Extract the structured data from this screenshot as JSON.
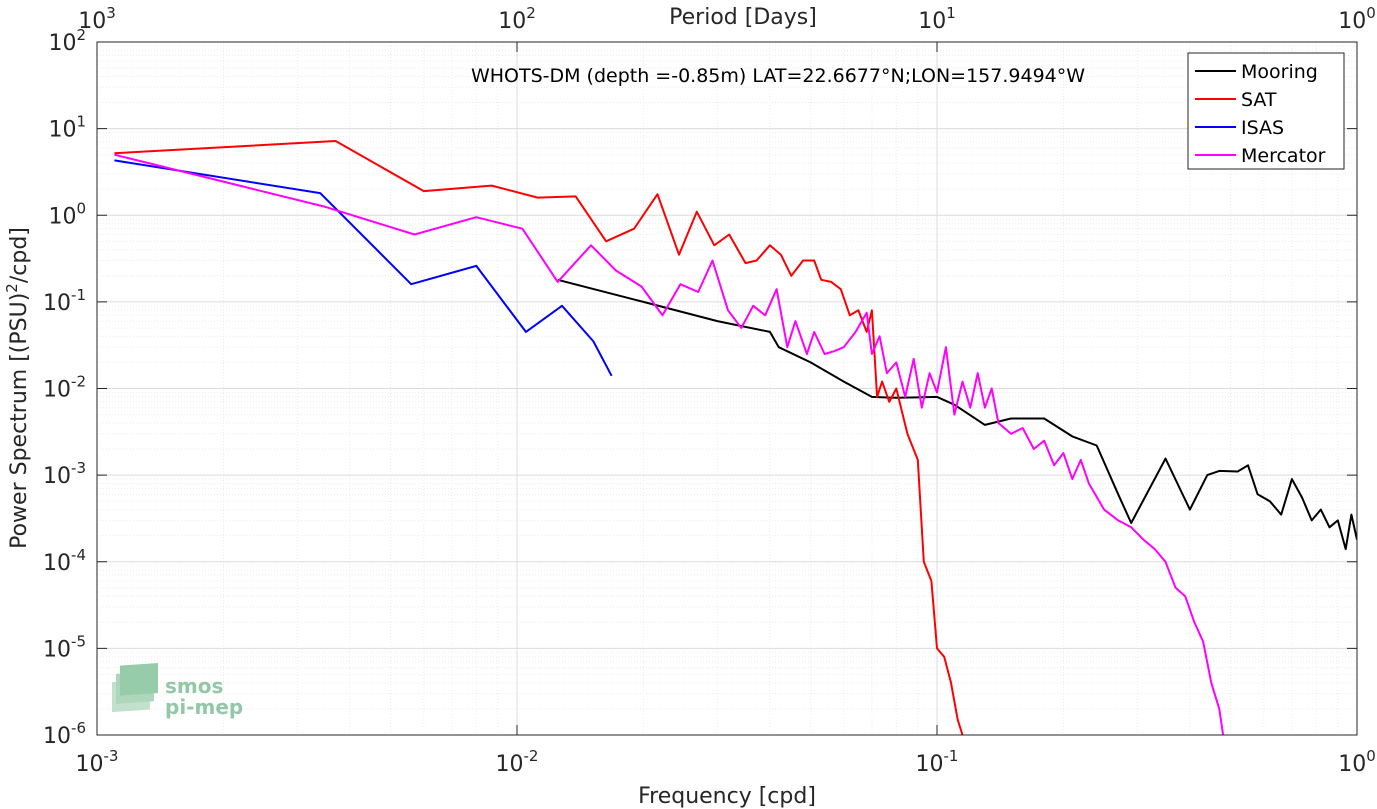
{
  "chart_data": {
    "type": "line",
    "title": "WHOTS-DM (depth =-0.85m) LAT=22.6677°N;LON=157.9494°W",
    "xlabel": "Frequency [cpd]",
    "ylabel_main": "Power Spectrum [(PSU)",
    "ylabel_sup": "2",
    "ylabel_tail": "/cpd]",
    "top_xlabel": "Period [Days]",
    "xscale": "log",
    "yscale": "log",
    "xlim": [
      0.001,
      1
    ],
    "ylim": [
      1e-06,
      100
    ],
    "grid": true,
    "legend_position": "top-right",
    "x_ticks": [
      {
        "value": 0.001,
        "base": "10",
        "exp": "-3"
      },
      {
        "value": 0.01,
        "base": "10",
        "exp": "-2"
      },
      {
        "value": 0.1,
        "base": "10",
        "exp": "-1"
      },
      {
        "value": 1,
        "base": "10",
        "exp": "0"
      }
    ],
    "y_ticks": [
      {
        "value": 1e-06,
        "base": "10",
        "exp": "-6"
      },
      {
        "value": 1e-05,
        "base": "10",
        "exp": "-5"
      },
      {
        "value": 0.0001,
        "base": "10",
        "exp": "-4"
      },
      {
        "value": 0.001,
        "base": "10",
        "exp": "-3"
      },
      {
        "value": 0.01,
        "base": "10",
        "exp": "-2"
      },
      {
        "value": 0.1,
        "base": "10",
        "exp": "-1"
      },
      {
        "value": 1,
        "base": "10",
        "exp": "0"
      },
      {
        "value": 10,
        "base": "10",
        "exp": "1"
      },
      {
        "value": 100,
        "base": "10",
        "exp": "2"
      }
    ],
    "top_ticks": [
      {
        "value": 1000,
        "base": "10",
        "exp": "3"
      },
      {
        "value": 100,
        "base": "10",
        "exp": "2"
      },
      {
        "value": 10,
        "base": "10",
        "exp": "1"
      },
      {
        "value": 1,
        "base": "10",
        "exp": "0"
      }
    ],
    "series": [
      {
        "name": "Mooring",
        "color": "#000000",
        "x": [
          0.0125,
          0.02,
          0.03,
          0.04,
          0.042,
          0.05,
          0.06,
          0.07,
          0.08,
          0.09,
          0.1,
          0.11,
          0.13,
          0.15,
          0.18,
          0.21,
          0.24,
          0.27,
          0.29,
          0.35,
          0.4,
          0.44,
          0.47,
          0.52,
          0.55,
          0.58,
          0.62,
          0.66,
          0.7,
          0.74,
          0.78,
          0.82,
          0.86,
          0.9,
          0.94,
          0.97,
          1.0
        ],
        "y": [
          0.18,
          0.1,
          0.06,
          0.045,
          0.03,
          0.02,
          0.012,
          0.008,
          0.0078,
          0.0079,
          0.008,
          0.0065,
          0.0038,
          0.0045,
          0.0045,
          0.0028,
          0.0022,
          0.0006,
          0.00028,
          0.00155,
          0.0004,
          0.001,
          0.00112,
          0.0011,
          0.0013,
          0.0006,
          0.0005,
          0.00035,
          0.0009,
          0.00055,
          0.0003,
          0.0004,
          0.00025,
          0.0003,
          0.00014,
          0.00035,
          0.00018
        ]
      },
      {
        "name": "SAT",
        "color": "#ff0000",
        "x": [
          0.0011,
          0.0037,
          0.006,
          0.0087,
          0.0112,
          0.0138,
          0.0163,
          0.019,
          0.0216,
          0.0243,
          0.0268,
          0.0295,
          0.032,
          0.035,
          0.0372,
          0.04,
          0.0425,
          0.045,
          0.048,
          0.051,
          0.053,
          0.056,
          0.059,
          0.062,
          0.065,
          0.068,
          0.07,
          0.072,
          0.074,
          0.077,
          0.08,
          0.085,
          0.09,
          0.093,
          0.097,
          0.1,
          0.104,
          0.108,
          0.112,
          0.115
        ],
        "y": [
          5.2,
          7.2,
          1.9,
          2.2,
          1.6,
          1.65,
          0.5,
          0.7,
          1.75,
          0.35,
          1.1,
          0.45,
          0.6,
          0.28,
          0.3,
          0.45,
          0.35,
          0.2,
          0.3,
          0.3,
          0.18,
          0.17,
          0.14,
          0.07,
          0.08,
          0.045,
          0.08,
          0.008,
          0.012,
          0.007,
          0.01,
          0.003,
          0.0015,
          0.0001,
          6e-05,
          1e-05,
          8e-06,
          4e-06,
          1.5e-06,
          1e-06
        ]
      },
      {
        "name": "ISAS",
        "color": "#0000ff",
        "x": [
          0.0011,
          0.0034,
          0.0056,
          0.008,
          0.0105,
          0.0128,
          0.0152,
          0.0168
        ],
        "y": [
          4.3,
          1.8,
          0.16,
          0.26,
          0.045,
          0.09,
          0.035,
          0.014
        ]
      },
      {
        "name": "Mercator",
        "color": "#ff00ff",
        "x": [
          0.0011,
          0.0035,
          0.0057,
          0.008,
          0.0103,
          0.0125,
          0.015,
          0.0172,
          0.0198,
          0.0222,
          0.0245,
          0.027,
          0.0292,
          0.0318,
          0.0342,
          0.0365,
          0.039,
          0.0415,
          0.044,
          0.046,
          0.049,
          0.051,
          0.054,
          0.057,
          0.06,
          0.064,
          0.068,
          0.07,
          0.073,
          0.076,
          0.08,
          0.084,
          0.088,
          0.092,
          0.096,
          0.1,
          0.105,
          0.11,
          0.115,
          0.12,
          0.125,
          0.13,
          0.135,
          0.14,
          0.15,
          0.16,
          0.17,
          0.18,
          0.19,
          0.2,
          0.21,
          0.22,
          0.23,
          0.25,
          0.27,
          0.29,
          0.31,
          0.33,
          0.35,
          0.37,
          0.39,
          0.41,
          0.43,
          0.45,
          0.47,
          0.48
        ],
        "y": [
          5.0,
          1.25,
          0.6,
          0.95,
          0.7,
          0.17,
          0.45,
          0.23,
          0.15,
          0.07,
          0.16,
          0.13,
          0.3,
          0.08,
          0.05,
          0.09,
          0.07,
          0.14,
          0.03,
          0.06,
          0.025,
          0.045,
          0.025,
          0.027,
          0.03,
          0.045,
          0.075,
          0.025,
          0.04,
          0.015,
          0.02,
          0.008,
          0.022,
          0.006,
          0.015,
          0.009,
          0.03,
          0.005,
          0.012,
          0.006,
          0.015,
          0.006,
          0.01,
          0.004,
          0.003,
          0.0035,
          0.002,
          0.0025,
          0.0013,
          0.0018,
          0.0009,
          0.0015,
          0.0008,
          0.0004,
          0.0003,
          0.00025,
          0.00018,
          0.00014,
          0.0001,
          5e-05,
          4e-05,
          2e-05,
          1.2e-05,
          4e-06,
          2e-06,
          1e-06
        ]
      }
    ],
    "logo": {
      "line1": "smos",
      "line2": "pi-mep"
    }
  }
}
